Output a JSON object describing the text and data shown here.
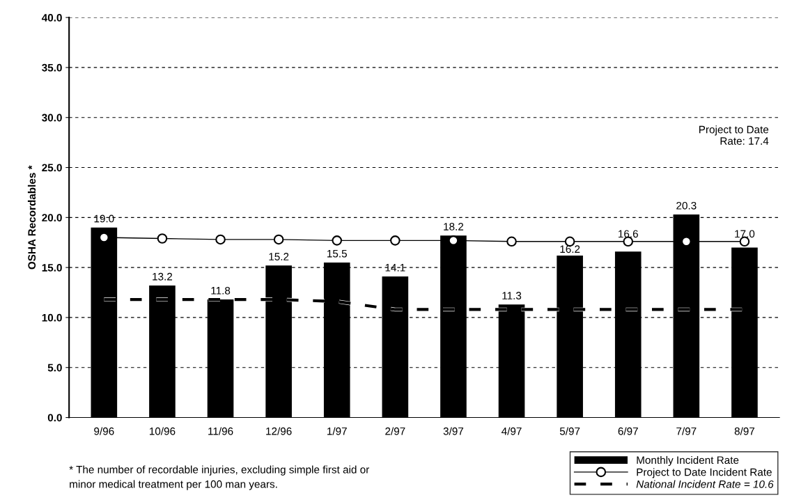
{
  "chart_data": {
    "type": "bar",
    "ylabel": "OSHA Recordables *",
    "categories": [
      "9/96",
      "10/96",
      "11/96",
      "12/96",
      "1/97",
      "2/97",
      "3/97",
      "4/97",
      "5/97",
      "6/97",
      "7/97",
      "8/97"
    ],
    "series": [
      {
        "name": "Monthly Incident Rate",
        "color": "#000000",
        "values": [
          19.0,
          13.2,
          11.8,
          15.2,
          15.5,
          14.1,
          18.2,
          11.3,
          16.2,
          16.6,
          20.3,
          17.0
        ],
        "value_labels": [
          "19.0",
          "13.2",
          "11.8",
          "15.2",
          "15.5",
          "14.1",
          "18.2",
          "11.3",
          "16.2",
          "16.6",
          "20.3",
          "17.0"
        ]
      },
      {
        "name": "Project to Date Incident Rate",
        "type": "line",
        "color": "#000000",
        "marker": "circle",
        "line_style": "solid",
        "values": [
          18.0,
          17.9,
          17.8,
          17.8,
          17.7,
          17.7,
          17.7,
          17.6,
          17.6,
          17.6,
          17.6,
          17.6
        ]
      },
      {
        "name": "National Incident Rate = 10.6",
        "type": "line",
        "color": "#000000",
        "marker": "none",
        "line_style": "dashed",
        "values": [
          11.8,
          11.8,
          11.8,
          11.8,
          11.6,
          10.8,
          10.8,
          10.8,
          10.8,
          10.8,
          10.8,
          10.8
        ]
      }
    ],
    "ylim": [
      0,
      40
    ],
    "yticks": [
      {
        "value": 0,
        "label": "0.0"
      },
      {
        "value": 5,
        "label": "5.0"
      },
      {
        "value": 10,
        "label": "10.0"
      },
      {
        "value": 15,
        "label": "15.0"
      },
      {
        "value": 20,
        "label": "20.0"
      },
      {
        "value": 25,
        "label": "25.0"
      },
      {
        "value": 30,
        "label": "30.0"
      },
      {
        "value": 35,
        "label": "35.0"
      },
      {
        "value": 40,
        "label": "40.0"
      }
    ],
    "grid": "y",
    "legend": "bottom right",
    "annotations": [
      "Project to Date\nRate: 17.4",
      "* The number of recordable injuries, excluding simple first aid or\nminor medical treatment per 100 man years."
    ]
  }
}
